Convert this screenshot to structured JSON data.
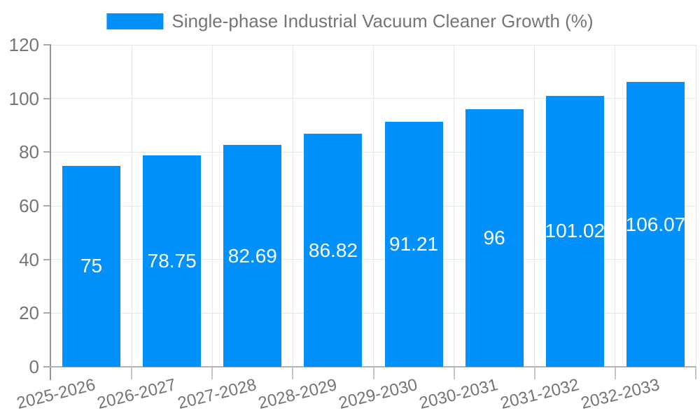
{
  "chart_data": {
    "type": "bar",
    "title": "Single-phase Industrial Vacuum Cleaner Growth (%)",
    "categories": [
      "2025-2026",
      "2026-2027",
      "2027-2028",
      "2028-2029",
      "2029-2030",
      "2030-2031",
      "2031-2032",
      "2032-2033"
    ],
    "values": [
      75,
      78.75,
      82.69,
      86.82,
      91.21,
      96,
      101.02,
      106.07
    ],
    "value_labels": [
      "75",
      "78.75",
      "82.69",
      "86.82",
      "91.21",
      "96",
      "101.02",
      "106.07"
    ],
    "xlabel": "",
    "ylabel": "",
    "ylim": [
      0,
      120
    ],
    "yticks": [
      0,
      20,
      40,
      60,
      80,
      100,
      120
    ],
    "grid": true,
    "legend_position": "top-center",
    "bar_color": "#0291fb",
    "value_label_color": "#ffffff",
    "tick_text_color": "#757575",
    "gridline_color": "#e7e7e7",
    "axis_color": "#949494"
  }
}
